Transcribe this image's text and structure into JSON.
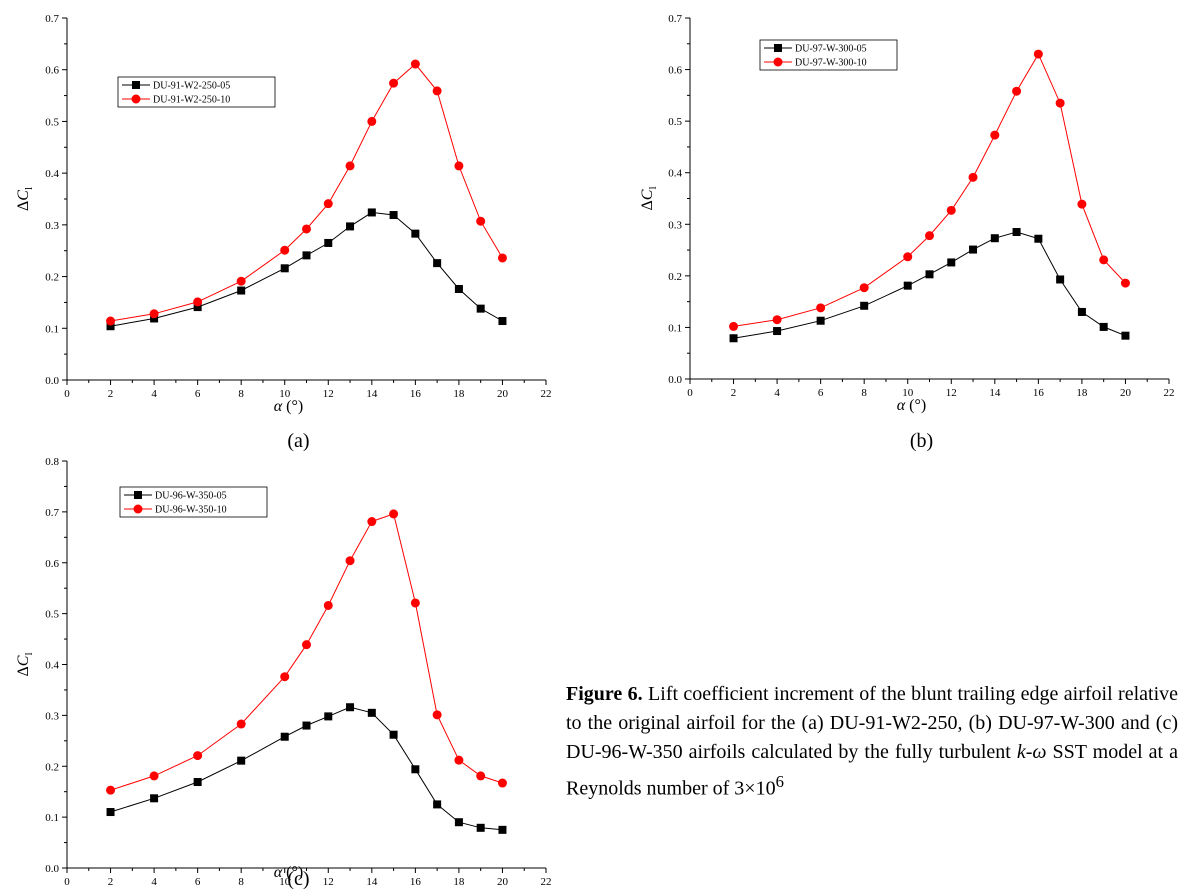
{
  "caption": {
    "label": "Figure 6.",
    "text_1": " Lift coefficient increment of the blunt trailing edge airfoil relative to the original airfoil for the (a) DU-91-W2-250, (b) DU-97-W-300 and (c) DU-96-W-350 airfoils calculated by the fully turbulent ",
    "model_k": "k",
    "model_sep": "-",
    "model_omega": "ω",
    "text_2": " SST model at a Reynolds number of 3×10",
    "exponent": "6"
  },
  "chart_data": [
    {
      "type": "line",
      "panel_label": "(a)",
      "xlabel_symbol": "α",
      "xlabel_unit": "(°)",
      "ylabel_prefix": "ΔC",
      "ylabel_sub": "l",
      "xlim": [
        0,
        22
      ],
      "ylim": [
        0.0,
        0.7
      ],
      "xticks": [
        0,
        2,
        4,
        6,
        8,
        10,
        12,
        14,
        16,
        18,
        20,
        22
      ],
      "yticks": [
        "0.0",
        "0.1",
        "0.2",
        "0.3",
        "0.4",
        "0.5",
        "0.6",
        "0.7"
      ],
      "legend_position": "upper-left",
      "x": [
        2,
        4,
        6,
        8,
        10,
        11,
        12,
        13,
        14,
        15,
        16,
        17,
        18,
        19,
        20
      ],
      "series": [
        {
          "name": "DU-91-W2-250-05",
          "color": "#000000",
          "marker": "square",
          "values": [
            0.104,
            0.119,
            0.141,
            0.173,
            0.216,
            0.241,
            0.265,
            0.297,
            0.324,
            0.319,
            0.283,
            0.226,
            0.176,
            0.138,
            0.114
          ]
        },
        {
          "name": "DU-91-W2-250-10",
          "color": "#ff0000",
          "marker": "circle",
          "values": [
            0.114,
            0.128,
            0.151,
            0.191,
            0.251,
            0.292,
            0.341,
            0.414,
            0.5,
            0.574,
            0.611,
            0.559,
            0.414,
            0.307,
            0.236
          ]
        }
      ]
    },
    {
      "type": "line",
      "panel_label": "(b)",
      "xlabel_symbol": "α",
      "xlabel_unit": "(°)",
      "ylabel_prefix": "ΔC",
      "ylabel_sub": "l",
      "xlim": [
        0,
        22
      ],
      "ylim": [
        0.0,
        0.7
      ],
      "xticks": [
        0,
        2,
        4,
        6,
        8,
        10,
        12,
        14,
        16,
        18,
        20,
        22
      ],
      "yticks": [
        "0.0",
        "0.1",
        "0.2",
        "0.3",
        "0.4",
        "0.5",
        "0.6",
        "0.7"
      ],
      "legend_position": "upper-left",
      "x": [
        2,
        4,
        6,
        8,
        10,
        11,
        12,
        13,
        14,
        15,
        16,
        17,
        18,
        19,
        20
      ],
      "series": [
        {
          "name": "DU-97-W-300-05",
          "color": "#000000",
          "marker": "square",
          "values": [
            0.079,
            0.093,
            0.113,
            0.142,
            0.181,
            0.203,
            0.226,
            0.251,
            0.273,
            0.285,
            0.272,
            0.193,
            0.13,
            0.101,
            0.084
          ]
        },
        {
          "name": "DU-97-W-300-10",
          "color": "#ff0000",
          "marker": "circle",
          "values": [
            0.102,
            0.115,
            0.138,
            0.177,
            0.237,
            0.278,
            0.327,
            0.391,
            0.473,
            0.558,
            0.63,
            0.535,
            0.339,
            0.231,
            0.186
          ]
        }
      ]
    },
    {
      "type": "line",
      "panel_label": "(c)",
      "xlabel_symbol": "α",
      "xlabel_unit": "(°)",
      "ylabel_prefix": "ΔC",
      "ylabel_sub": "l",
      "xlim": [
        0,
        22
      ],
      "ylim": [
        0.0,
        0.8
      ],
      "xticks": [
        0,
        2,
        4,
        6,
        8,
        10,
        12,
        14,
        16,
        18,
        20,
        22
      ],
      "yticks": [
        "0.0",
        "0.1",
        "0.2",
        "0.3",
        "0.4",
        "0.5",
        "0.6",
        "0.7",
        "0.8"
      ],
      "legend_position": "upper-left",
      "x": [
        2,
        4,
        6,
        8,
        10,
        11,
        12,
        13,
        14,
        15,
        16,
        17,
        18,
        19,
        20
      ],
      "series": [
        {
          "name": "DU-96-W-350-05",
          "color": "#000000",
          "marker": "square",
          "values": [
            0.11,
            0.137,
            0.169,
            0.211,
            0.258,
            0.28,
            0.298,
            0.316,
            0.305,
            0.262,
            0.194,
            0.125,
            0.09,
            0.079,
            0.075
          ]
        },
        {
          "name": "DU-96-W-350-10",
          "color": "#ff0000",
          "marker": "circle",
          "values": [
            0.153,
            0.181,
            0.221,
            0.283,
            0.376,
            0.439,
            0.516,
            0.604,
            0.681,
            0.696,
            0.521,
            0.301,
            0.212,
            0.181,
            0.167
          ]
        }
      ]
    }
  ]
}
